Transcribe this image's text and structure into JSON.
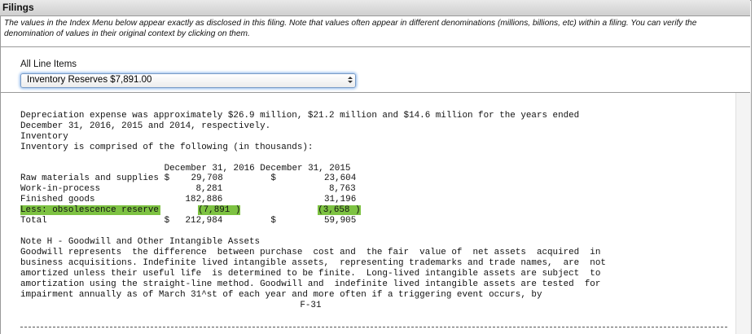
{
  "header": {
    "title": "Filings",
    "note": "The values in the Index Menu below appear exactly as disclosed in this filing. Note that values often appear in different denominations (millions, billions, etc) within a filing. You can verify the denomination of values in their original context by clicking on them."
  },
  "selector": {
    "label": "All Line Items",
    "selected": "Inventory Reserves $7,891.00"
  },
  "document": {
    "intro": [
      "Depreciation expense was approximately $26.9 million, $21.2 million and $14.6 million for the years ended",
      "December 31, 2016, 2015 and 2014, respectively.",
      "Inventory",
      "Inventory is comprised of the following (in thousands):"
    ],
    "table": {
      "columns": [
        "December 31, 2016",
        "December 31, 2015"
      ],
      "rows": [
        {
          "label": "Raw materials and supplies",
          "currency1": "$",
          "value1": "29,708",
          "currency2": "$",
          "value2": "23,604"
        },
        {
          "label": "Work-in-process",
          "value1": "8,281",
          "value2": "8,763"
        },
        {
          "label": "Finished goods",
          "value1": "182,886",
          "value2": "31,196"
        },
        {
          "label": "Less: obsolescence reserve",
          "value1": "(7,891 )",
          "value2": "(3,658 )",
          "highlighted": true
        },
        {
          "label": "Total",
          "currency1": "$",
          "value1": "212,984",
          "currency2": "$",
          "value2": "59,905"
        }
      ]
    },
    "note": [
      "Note H - Goodwill and Other Intangible Assets",
      "Goodwill represents  the difference  between purchase  cost and  the fair  value of  net assets  acquired  in",
      "business acquisitions. Indefinite lived intangible assets,  representing trademarks and trade names,  are  not",
      "amortized unless their useful life  is determined to be finite.  Long-lived intangible assets are subject  to",
      "amortization using the straight-line method. Goodwill and  indefinite lived intangible assets are tested  for",
      "impairment annually as of March 31^st of each year and more often if a triggering event occurs, by"
    ],
    "page": "F-31"
  }
}
